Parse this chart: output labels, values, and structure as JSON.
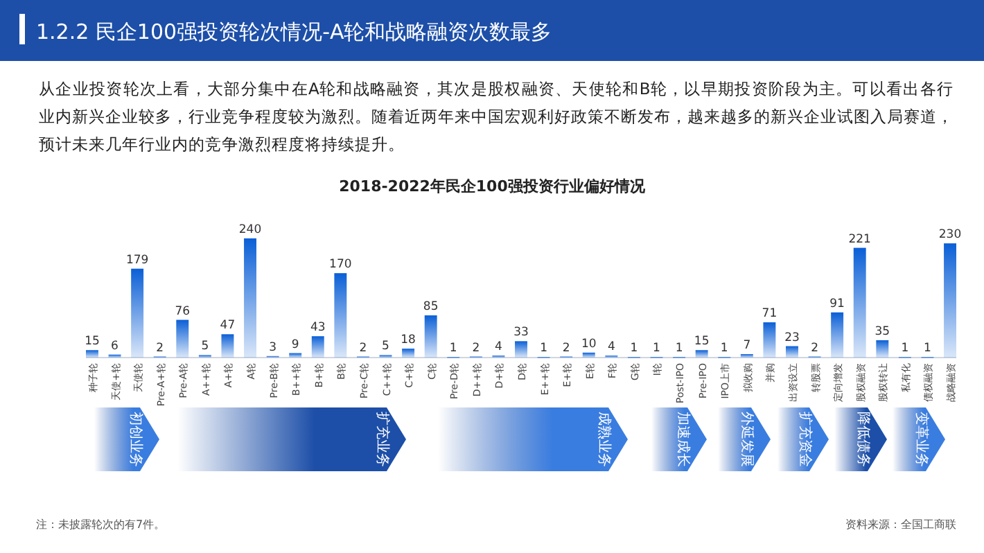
{
  "chart_data": {
    "type": "bar",
    "title": "2018-2022年民企100强投资行业偏好情况",
    "categories": [
      "种子轮",
      "天使+轮",
      "天使轮",
      "Pre-A+轮",
      "Pre-A轮",
      "A++轮",
      "A+轮",
      "A轮",
      "Pre-B轮",
      "B++轮",
      "B+轮",
      "B轮",
      "Pre-C轮",
      "C++轮",
      "C+轮",
      "C轮",
      "Pre-D轮",
      "D++轮",
      "D+轮",
      "D轮",
      "E++轮",
      "E+轮",
      "E轮",
      "F轮",
      "G轮",
      "I轮",
      "Post-IPO",
      "Pre-IPO",
      "IPO上市",
      "拟收购",
      "并购",
      "出资设立",
      "转股票",
      "定向增发",
      "股权融资",
      "股权转让",
      "私有化",
      "债权融资",
      "战略融资"
    ],
    "values": [
      15,
      6,
      179,
      2,
      76,
      5,
      47,
      240,
      3,
      9,
      43,
      170,
      2,
      5,
      18,
      85,
      1,
      2,
      4,
      33,
      1,
      2,
      10,
      4,
      1,
      1,
      1,
      15,
      1,
      7,
      71,
      23,
      2,
      91,
      221,
      35,
      1,
      1,
      230
    ],
    "color": "#0a5fd6",
    "data_labels": true,
    "annotations": [
      "1.2.2 民企100强投资轮次情况-A轮和战略融资次数最多",
      "从企业投资轮次上看，大部分集中在A轮和战略融资，其次是股权融资、天使轮和B轮，以早期投资阶段为主。可以看出各行业内新兴企业较多，行业竞争程度较为激烈。随着近两年来中国宏观利好政策不断发布，越来越多的新兴企业试图入局赛道，预计未来几年行业内的竞争激烈程度将持续提升。",
      "初创业务",
      "扩充业务",
      "成熟业务",
      "加速成长",
      "外延发展",
      "扩充资金",
      "降低债务",
      "变革业务",
      "注：未披露轮次的有7件。",
      "资料来源：全国工商联"
    ]
  }
}
